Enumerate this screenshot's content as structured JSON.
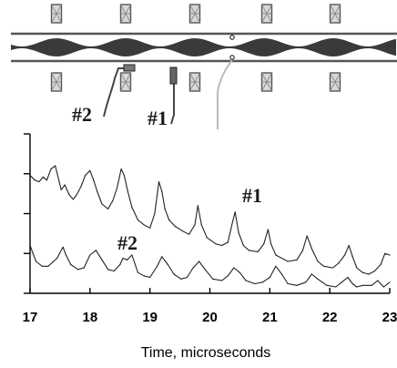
{
  "diagram": {
    "probe_labels": [
      "#2",
      "#1"
    ],
    "colors": {
      "beam": "#3a3a3a",
      "pipe_wall": "#555555",
      "magnet_fill": "#d8d8d8",
      "magnet_stroke": "#555555",
      "probe_cable": "#444444",
      "spare_cable": "#bbbbbb"
    }
  },
  "chart_data": {
    "type": "line",
    "xlabel": "Time, microseconds",
    "ylabel": "",
    "xlim": [
      17,
      23
    ],
    "ylim": [
      0,
      1
    ],
    "x_ticks": [
      "17",
      "18",
      "19",
      "20",
      "21",
      "22",
      "23"
    ],
    "y_ticks": [
      0,
      0.25,
      0.5,
      0.75,
      1.0
    ],
    "grid": false,
    "series": [
      {
        "name": "#1",
        "color": "#222222",
        "x": [
          17.0,
          17.08,
          17.15,
          17.22,
          17.28,
          17.35,
          17.42,
          17.48,
          17.52,
          17.58,
          17.65,
          17.72,
          17.78,
          17.85,
          17.92,
          18.0,
          18.06,
          18.12,
          18.2,
          18.3,
          18.38,
          18.45,
          18.52,
          18.57,
          18.63,
          18.7,
          18.8,
          18.9,
          19.0,
          19.08,
          19.15,
          19.2,
          19.25,
          19.32,
          19.42,
          19.55,
          19.65,
          19.75,
          19.8,
          19.86,
          19.95,
          20.1,
          20.2,
          20.3,
          20.38,
          20.42,
          20.48,
          20.56,
          20.65,
          20.8,
          20.9,
          20.97,
          21.02,
          21.1,
          21.2,
          21.3,
          21.45,
          21.55,
          21.62,
          21.7,
          21.8,
          21.9,
          22.05,
          22.15,
          22.25,
          22.32,
          22.38,
          22.45,
          22.55,
          22.65,
          22.75,
          22.85,
          22.92,
          23.0
        ],
        "y": [
          0.74,
          0.71,
          0.7,
          0.73,
          0.71,
          0.78,
          0.8,
          0.71,
          0.65,
          0.68,
          0.62,
          0.59,
          0.62,
          0.67,
          0.74,
          0.77,
          0.71,
          0.64,
          0.56,
          0.53,
          0.58,
          0.66,
          0.78,
          0.74,
          0.64,
          0.54,
          0.46,
          0.43,
          0.41,
          0.5,
          0.7,
          0.64,
          0.53,
          0.46,
          0.42,
          0.39,
          0.37,
          0.43,
          0.55,
          0.43,
          0.35,
          0.31,
          0.3,
          0.32,
          0.45,
          0.51,
          0.38,
          0.3,
          0.27,
          0.26,
          0.31,
          0.4,
          0.31,
          0.24,
          0.22,
          0.2,
          0.21,
          0.27,
          0.36,
          0.28,
          0.2,
          0.17,
          0.16,
          0.19,
          0.24,
          0.3,
          0.23,
          0.16,
          0.13,
          0.12,
          0.14,
          0.18,
          0.25,
          0.24
        ]
      },
      {
        "name": "#2",
        "color": "#222222",
        "x": [
          17.0,
          17.05,
          17.1,
          17.2,
          17.3,
          17.45,
          17.55,
          17.6,
          17.68,
          17.8,
          17.9,
          18.0,
          18.1,
          18.2,
          18.3,
          18.4,
          18.5,
          18.55,
          18.62,
          18.7,
          18.8,
          18.9,
          19.0,
          19.12,
          19.2,
          19.3,
          19.4,
          19.52,
          19.62,
          19.72,
          19.82,
          19.92,
          20.05,
          20.2,
          20.3,
          20.4,
          20.5,
          20.6,
          20.75,
          20.88,
          21.0,
          21.1,
          21.2,
          21.3,
          21.45,
          21.6,
          21.7,
          21.8,
          21.95,
          22.1,
          22.2,
          22.3,
          22.38,
          22.45,
          22.55,
          22.7,
          22.8,
          22.9,
          23.0
        ],
        "y": [
          0.3,
          0.25,
          0.2,
          0.17,
          0.17,
          0.22,
          0.29,
          0.24,
          0.18,
          0.15,
          0.16,
          0.24,
          0.27,
          0.21,
          0.15,
          0.14,
          0.18,
          0.22,
          0.21,
          0.24,
          0.13,
          0.11,
          0.1,
          0.17,
          0.23,
          0.18,
          0.12,
          0.09,
          0.1,
          0.16,
          0.2,
          0.15,
          0.09,
          0.08,
          0.11,
          0.16,
          0.13,
          0.08,
          0.06,
          0.07,
          0.1,
          0.17,
          0.12,
          0.06,
          0.05,
          0.07,
          0.12,
          0.09,
          0.05,
          0.04,
          0.07,
          0.1,
          0.06,
          0.04,
          0.05,
          0.05,
          0.08,
          0.04,
          0.07
        ]
      }
    ]
  }
}
